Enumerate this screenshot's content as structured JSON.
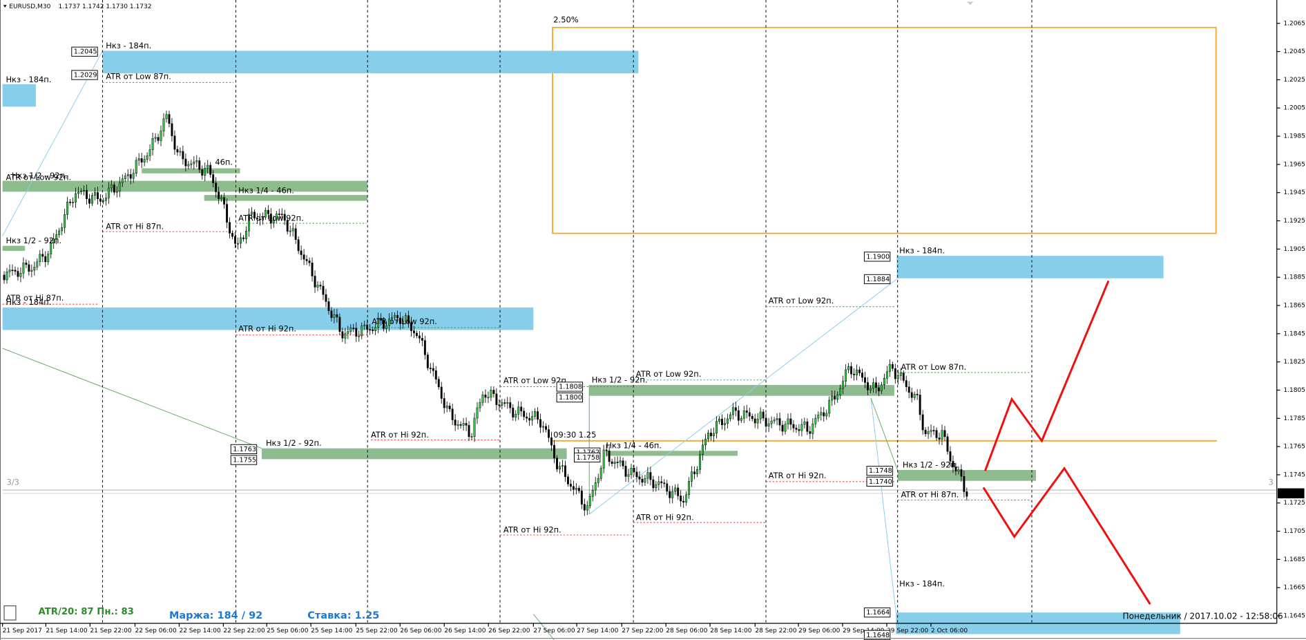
{
  "header": {
    "title": "EURUSD,M30",
    "quote": "1.1737 1.1742 1.1730 1.1732"
  },
  "price_axis": [
    "1.2065",
    "1.2045",
    "1.2025",
    "1.2005",
    "1.1985",
    "1.1965",
    "1.1945",
    "1.1925",
    "1.1905",
    "1.1885",
    "1.1865",
    "1.1845",
    "1.1825",
    "1.1805",
    "1.1785",
    "1.1765",
    "1.1745",
    "1.1725",
    "1.1705",
    "1.1685",
    "1.1665",
    "1.1645"
  ],
  "price_tag": "1.1732",
  "time_axis": [
    "21 Sep 2017",
    "21 Sep 14:00",
    "21 Sep 22:00",
    "22 Sep 06:00",
    "22 Sep 14:00",
    "22 Sep 22:00",
    "25 Sep 06:00",
    "25 Sep 14:00",
    "25 Sep 22:00",
    "26 Sep 06:00",
    "26 Sep 14:00",
    "26 Sep 22:00",
    "27 Sep 06:00",
    "27 Sep 14:00",
    "27 Sep 22:00",
    "28 Sep 06:00",
    "28 Sep 14:00",
    "28 Sep 22:00",
    "29 Sep 06:00",
    "29 Sep 14:00",
    "29 Sep 22:00",
    "2 Oct 06:00"
  ],
  "zone_labels": [
    "Нкз - 184п.",
    "ATR от Low 87п.",
    "Нкз - 184п.",
    "Нкз 1/2 - 92п.",
    "ATR от Low 92п.",
    "46п.",
    "Нкз 1/4 - 46п.",
    "ATR от Hi 87п.",
    "ATR от Low 92п.",
    "Нкз 1/2 - 92п.",
    "ATR от Hi 87п.",
    "Нкз - 184п.",
    "ATR от Low 92п.",
    "ATR от Hi 92п.",
    "ATR от Low 92п.",
    "Нкз 1/2 - 92п.",
    "ATR от Low 92п.",
    "ATR от Hi 92п.",
    "Нкз 1/2 - 92п.",
    "Нкз 1/4 - 46п.",
    "ATR от Hi 92п.",
    "ATR от Hi 92п.",
    "ATR от Low 92п.",
    "ATR от Hi 92п.",
    "Нкз - 184п.",
    "ATR от Low 87п.",
    "Нкз 1/2 - 92п.",
    "ATR от Hi 87п.",
    "Нкз - 184п."
  ],
  "price_boxes": [
    "1.2045",
    "1.2029",
    "1.1900",
    "1.1884",
    "1.1808",
    "1.1800",
    "1.1763",
    "1.1755",
    "1.1762",
    "1.1758",
    "1.1748",
    "1.1740",
    "1.1664",
    "1.1648"
  ],
  "annotations": {
    "percent": "2.50%",
    "time_note": "09:30 1.25",
    "page": "3/3",
    "page_right": "3"
  },
  "footer": {
    "atr": "ATR/20: 87  Пн.: 83",
    "margin": "Маржа: 184 / 92",
    "rate": "Ставка: 1.25",
    "datetime": "Понедельник / 2017.10.02 - 12:58:06",
    "help": "?"
  }
}
